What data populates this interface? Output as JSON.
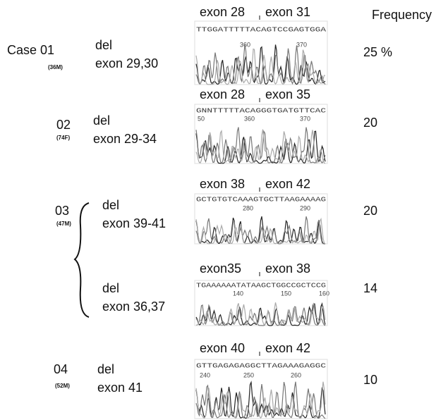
{
  "header": {
    "frequency": "Frequency"
  },
  "cases": [
    {
      "case": "Case 01",
      "patient": "(36M)",
      "mutations": [
        {
          "del": "del",
          "exons": "exon 29,30",
          "junction": [
            "exon 28",
            "exon 31"
          ],
          "sequence": "TTGGATTTTTACAGTCCGAGTGGA",
          "positions": [
            "360",
            "370"
          ],
          "frequency": "25 %"
        }
      ]
    },
    {
      "case": "02",
      "patient": "(74F)",
      "mutations": [
        {
          "del": "del",
          "exons": "exon 29-34",
          "junction": [
            "exon 28",
            "exon 35"
          ],
          "sequence": "GNNTTTTTACAGGGTGATGTTCAC",
          "positions": [
            "50",
            "360",
            "370"
          ],
          "frequency": "20"
        }
      ]
    },
    {
      "case": "03",
      "patient": "(47M)",
      "mutations": [
        {
          "del": "del",
          "exons": "exon 39-41",
          "junction": [
            "exon 38",
            "exon 42"
          ],
          "sequence": "GCTGTGTCAAAGTGCTTAAGAAAAG",
          "positions": [
            "280",
            "290"
          ],
          "frequency": "20"
        },
        {
          "del": "del",
          "exons": "exon 36,37",
          "junction": [
            "exon35",
            "exon 38"
          ],
          "sequence": "TGAAAAAATATAAGCTGGCCGCTCCG",
          "positions": [
            "140",
            "150",
            "160"
          ],
          "frequency": "14"
        }
      ]
    },
    {
      "case": "04",
      "patient": "(52M)",
      "mutations": [
        {
          "del": "del",
          "exons": "exon 41",
          "junction": [
            "exon 40",
            "exon 42"
          ],
          "sequence": "GTTGAGAGAGGCTTAGAAAGAGGC",
          "positions": [
            "240",
            "250",
            "260"
          ],
          "frequency": "10"
        }
      ]
    }
  ]
}
